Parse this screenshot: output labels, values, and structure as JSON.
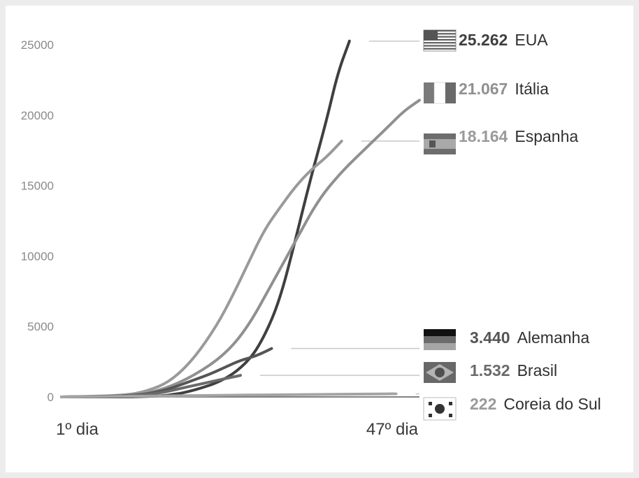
{
  "chart_data": {
    "type": "line",
    "title": "",
    "xlabel": "",
    "ylabel": "",
    "x_start_label": "1º dia",
    "x_end_label": "47º dia",
    "xlim": [
      1,
      47
    ],
    "ylim": [
      0,
      27000
    ],
    "yticks": [
      "0",
      "5000",
      "10000",
      "15000",
      "20000",
      "25000"
    ],
    "ytick_values": [
      0,
      5000,
      10000,
      15000,
      20000,
      25000
    ],
    "grid": false,
    "legend": "right, end-of-line labels with flags",
    "series": [
      {
        "name": "EUA",
        "value_label": "25.262",
        "color": "#3f3f3f",
        "flag": "usa-flag-icon",
        "x": [
          1,
          9,
          12,
          15,
          18,
          22,
          25,
          27,
          29,
          31,
          33,
          35,
          36.5,
          38
        ],
        "y": [
          0,
          0,
          30,
          120,
          450,
          1200,
          2500,
          4200,
          6800,
          11000,
          15500,
          19500,
          23000,
          25262
        ]
      },
      {
        "name": "Itália",
        "value_label": "21.067",
        "color": "#909090",
        "flag": "italy-flag-icon",
        "x": [
          1,
          10,
          14,
          18,
          22,
          25,
          28,
          31,
          34,
          37,
          40,
          43,
          45,
          47
        ],
        "y": [
          0,
          80,
          500,
          1500,
          3000,
          5000,
          8000,
          11000,
          14000,
          16000,
          17600,
          19200,
          20300,
          21067
        ]
      },
      {
        "name": "Espanha",
        "value_label": "18.164",
        "color": "#9a9a9a",
        "flag": "spain-flag-icon",
        "x": [
          1,
          9,
          12,
          15,
          18,
          21,
          23,
          25,
          27,
          29,
          31,
          33,
          35,
          37
        ],
        "y": [
          0,
          100,
          400,
          1100,
          2700,
          5100,
          7200,
          9500,
          11800,
          13400,
          14900,
          16100,
          17000,
          18164
        ]
      },
      {
        "name": "Alemanha",
        "value_label": "3.440",
        "color": "#555555",
        "flag": "germany-flag-icon",
        "x": [
          1,
          10,
          14,
          17,
          20,
          22,
          24,
          26,
          28
        ],
        "y": [
          0,
          60,
          400,
          1000,
          1600,
          2100,
          2600,
          2900,
          3440
        ]
      },
      {
        "name": "Brasil",
        "value_label": "1.532",
        "color": "#6a6a6a",
        "flag": "brazil-flag-icon",
        "x": [
          1,
          10,
          14,
          17,
          20,
          22,
          24
        ],
        "y": [
          0,
          60,
          300,
          700,
          1050,
          1300,
          1532
        ]
      },
      {
        "name": "Coreia do Sul",
        "value_label": "222",
        "color": "#a4a4a4",
        "flag": "south-korea-flag-icon",
        "x": [
          1,
          10,
          20,
          30,
          40,
          44
        ],
        "y": [
          0,
          40,
          110,
          160,
          200,
          222
        ]
      }
    ]
  }
}
